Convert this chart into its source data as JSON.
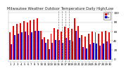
{
  "title": "Milwaukee Weather Outdoor Temperature Daily High/Low",
  "title_fontsize": 3.8,
  "background_color": "#ffffff",
  "plot_bg_color": "#ffffff",
  "bar_width": 0.4,
  "ylim": [
    -5,
    105
  ],
  "yticks": [
    0,
    20,
    40,
    60,
    80,
    100
  ],
  "ylabel_fontsize": 3.0,
  "xlabel_fontsize": 2.8,
  "grid_color": "#bbbbbb",
  "high_color": "#ff0000",
  "low_color": "#0000ff",
  "legend_high": "Hi",
  "legend_low": "Lo",
  "dashed_lines": [
    14,
    15,
    16,
    17
  ],
  "categories": [
    "1",
    "2",
    "3",
    "4",
    "5",
    "6",
    "7",
    "8",
    "9",
    "10",
    "11",
    "12",
    "13",
    "14",
    "15",
    "16",
    "17",
    "18",
    "19",
    "20",
    "21",
    "22",
    "23",
    "24",
    "25",
    "26",
    "27",
    "28",
    "29",
    "30"
  ],
  "highs": [
    58,
    72,
    76,
    78,
    82,
    80,
    84,
    86,
    88,
    62,
    48,
    44,
    55,
    68,
    65,
    60,
    70,
    68,
    66,
    88,
    72,
    52,
    50,
    55,
    60,
    58,
    56,
    60,
    62,
    58
  ],
  "lows": [
    32,
    52,
    55,
    58,
    60,
    52,
    58,
    62,
    62,
    44,
    36,
    22,
    35,
    42,
    42,
    36,
    46,
    42,
    38,
    62,
    46,
    26,
    24,
    32,
    36,
    34,
    30,
    34,
    38,
    34
  ]
}
